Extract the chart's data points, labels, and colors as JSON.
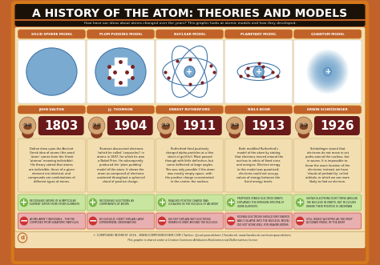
{
  "title": "A HISTORY OF THE ATOM: THEORIES AND MODELS",
  "subtitle": "How have our ideas about atoms changed over the years? This graphic looks at atomic models and how they developed.",
  "bg_color": "#c0622a",
  "inner_bg": "#f2deb0",
  "title_bg": "#1a1a1a",
  "title_color": "#ffffff",
  "subtitle_color": "#222222",
  "scientists": [
    "JOHN DALTON",
    "J.J. THOMSON",
    "ERNEST RUTHERFORD",
    "NIELS BOHR",
    "ERWIN SCHRÖDINGER"
  ],
  "years": [
    "1803",
    "1904",
    "1911",
    "1913",
    "1926"
  ],
  "models": [
    "SOLID SPHERE MODEL",
    "PLUM PUDDING MODEL",
    "NUCLEAR MODEL",
    "PLANETARY MODEL",
    "QUANTUM MODEL"
  ],
  "year_color": "#6b1a1a",
  "model_label_bg": "#c0622a",
  "scientist_label_bg": "#c0622a",
  "pros": [
    "RECOGNISED ATOMS OF A PARTICULAR\nELEMENT DIFFER FROM OTHER ELEMENTS",
    "RECOGNISED ELECTRONS AS\nCOMPONENTS OF ATOMS",
    "REALISED POSITIVE CHARGE WAS\nLOCALISED IN THE NUCLEUS OF AN ATOM",
    "PROPOSED STABLE ELECTRON ORBITS\nEXPLAINED THE EMISSION SPECTRA OF\nSOME ELEMENTS",
    "SHOWS ELECTRONS DON'T MOVE AROUND\nTHE NUCLEUS IN ORBITS, BUT IN CLOUDS\nWHERE THEIR POSITION IS UNCERTAIN"
  ],
  "cons": [
    "ATOMS AREN'T INDIVISIBLE - THEY'RE\nCOMPOSED FROM SUBATOMIC PARTICLES",
    "NO NUCLEUS, DIDN'T EXPLAIN LATER\nEXPERIMENTAL OBSERVATIONS",
    "DID NOT EXPLAIN WHY ELECTRONS\nREMAIN IN ORBIT AROUND THE NUCLEUS",
    "MOVING ELECTRONS SHOULD EMIT ENERGY\nAND COLLAPSE INTO THE NUCLEUS, MODEL\nDID NOT WORK WELL FOR HEAVIER ATOMS",
    "STILL WIDELY ACCEPTED AS THE MOST\nACCURATE MODEL OF THE ATOM"
  ],
  "pro_color": "#7ab648",
  "con_color": "#cc3333",
  "pro_bg": "#c8e6a0",
  "con_bg": "#e8b0b0",
  "desc_bg": "#f2deb0",
  "atom_fill": "#7aaad0",
  "atom_edge": "#4477aa",
  "nucleus_fill": "#7aaad0",
  "electron_color": "#7a2020",
  "orbit_color": "#4477aa",
  "footer": "© COMPOUND INTEREST 2016 - WWW.COMPOUNDCHEM.COM | Twitter: @compoundchem | Facebook: www.facebook.com/compoundchem",
  "footer2": "This graphic is shared under a Creative Commons Attribution-NonCommercial-NoDerivatives licence",
  "descriptions": [
    "Dalton drew upon the Ancient\nGreek idea of atoms (the word\n'atom' comes from the Greek\n'atomos' meaning indivisible).\nHis theory stated that atoms\nare indivisible, those of a given\nelement are identical, and\ncompounds are combinations of\ndifferent types of atoms.",
    "Thomson discovered electrons\n(which he called 'corpuscles') in\natoms in 1897, for which he won\na Nobel Prize. He subsequently\nproduced the 'plum pudding'\nmodel of the atom. It shows the\natom as composed of electrons\nscattered throughout a spherical\ncloud of positive charge.",
    "Rutherford fired positively\ncharged alpha particles at a thin\nsheet of gold foil. Most passed\nthrough with little deflection, but\nsome deflected at large angles.\nThis was only possible if the atom\nwas mostly empty space, with\nthe positive charge concentrated\nin the centre: the nucleus.",
    "Bohr modified Rutherford's\nmodel of the atom by stating\nthat electrons moved around the\nnucleus in orbits of fixed sizes\nand energies. Electron energy\nin this model was quantised;\nelectrons could not occupy\nvalues of energy between the\nfixed energy levels.",
    "Schrödinger stated that\nelectrons do not move in set\npaths around the nucleus, but\nin waves. It is impossible to\nknow the exact location of the\nelectrons; instead, we have\n'clouds of probability' called\norbitals, in which we are more\nlikely to find an electron."
  ]
}
